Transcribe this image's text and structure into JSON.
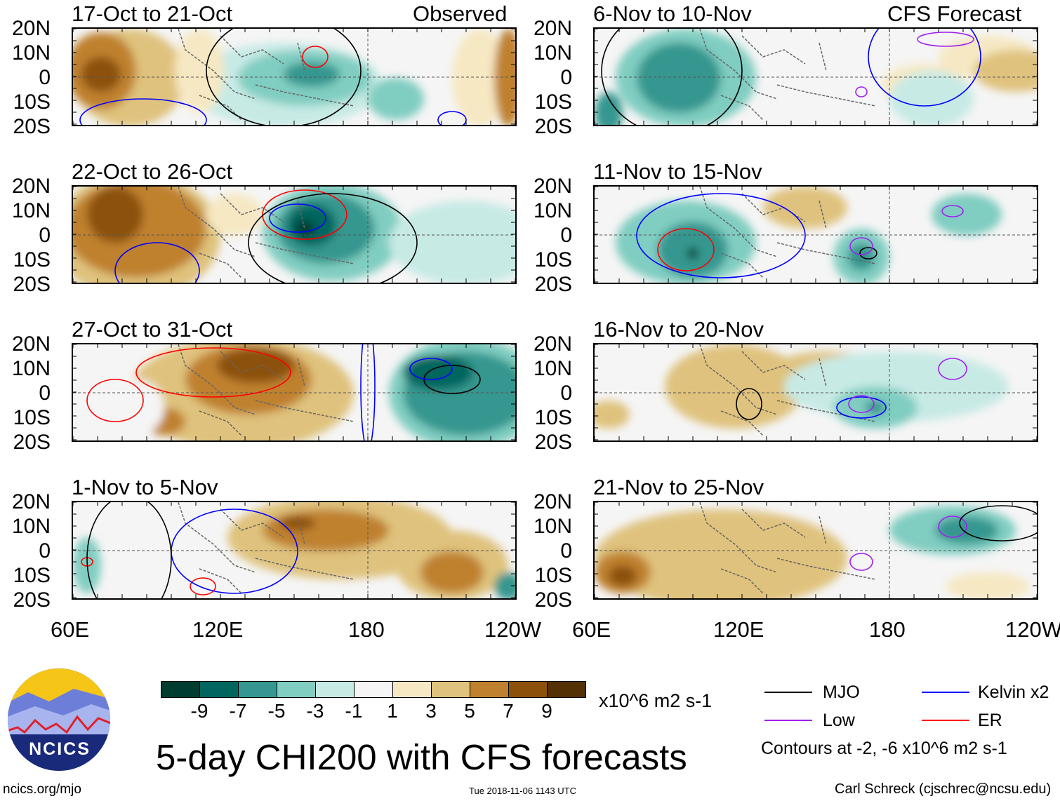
{
  "title": "5-day CHI200 with CFS forecasts",
  "observed_label": "Observed",
  "forecast_label": "CFS Forecast",
  "panels_left": [
    "17-Oct to 21-Oct",
    "22-Oct to 26-Oct",
    "27-Oct to 31-Oct",
    "1-Nov to 5-Nov"
  ],
  "panels_right": [
    "6-Nov to 10-Nov",
    "11-Nov to 15-Nov",
    "16-Nov to 20-Nov",
    "21-Nov to 25-Nov"
  ],
  "lat_labels": [
    "20N",
    "10N",
    "0",
    "10S",
    "20S"
  ],
  "lon_labels": [
    "60E",
    "120E",
    "180",
    "120W"
  ],
  "colorbar": {
    "colors": [
      "#003c30",
      "#01665e",
      "#35978f",
      "#80cdc1",
      "#c7eae5",
      "#f5f5f5",
      "#f6e8c3",
      "#dfc27d",
      "#bf812d",
      "#8c510a",
      "#543005"
    ],
    "ticks": [
      "-9",
      "-7",
      "-5",
      "-3",
      "-1",
      "1",
      "3",
      "5",
      "7",
      "9"
    ],
    "units": "x10^6 m2 s-1"
  },
  "legend": {
    "items": [
      {
        "label": "MJO",
        "color": "#000000"
      },
      {
        "label": "Kelvin x2",
        "color": "#0000ff"
      },
      {
        "label": "Low",
        "color": "#a020f0"
      },
      {
        "label": "ER",
        "color": "#ff0000"
      }
    ],
    "note": "Contours at -2, -6 x10^6 m2 s-1"
  },
  "logo_text": "NCICS",
  "url": "ncics.org/mjo",
  "timestamp": "Tue 2018-11-06 1143 UTC",
  "credit": "Carl Schreck (cjschrec@ncsu.edu)"
}
